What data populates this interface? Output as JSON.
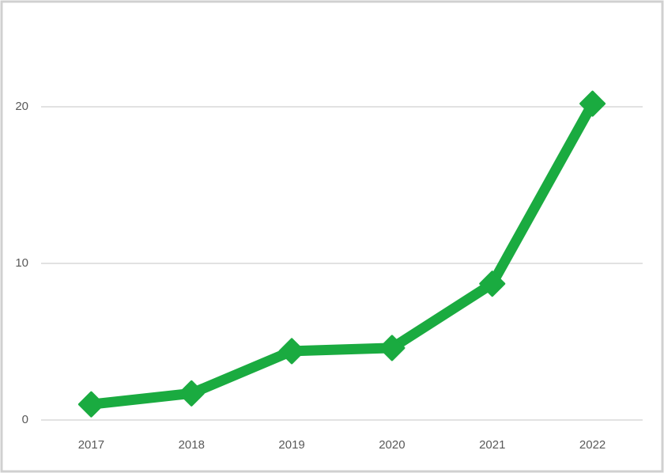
{
  "chart_data": {
    "type": "line",
    "categories": [
      "2017",
      "2018",
      "2019",
      "2020",
      "2021",
      "2022"
    ],
    "values": [
      1.0,
      1.7,
      4.4,
      4.6,
      8.7,
      20.2
    ],
    "color": "#1aab40",
    "ylim": [
      0,
      25
    ],
    "yticks": [
      0,
      10,
      20
    ],
    "grid": true
  }
}
